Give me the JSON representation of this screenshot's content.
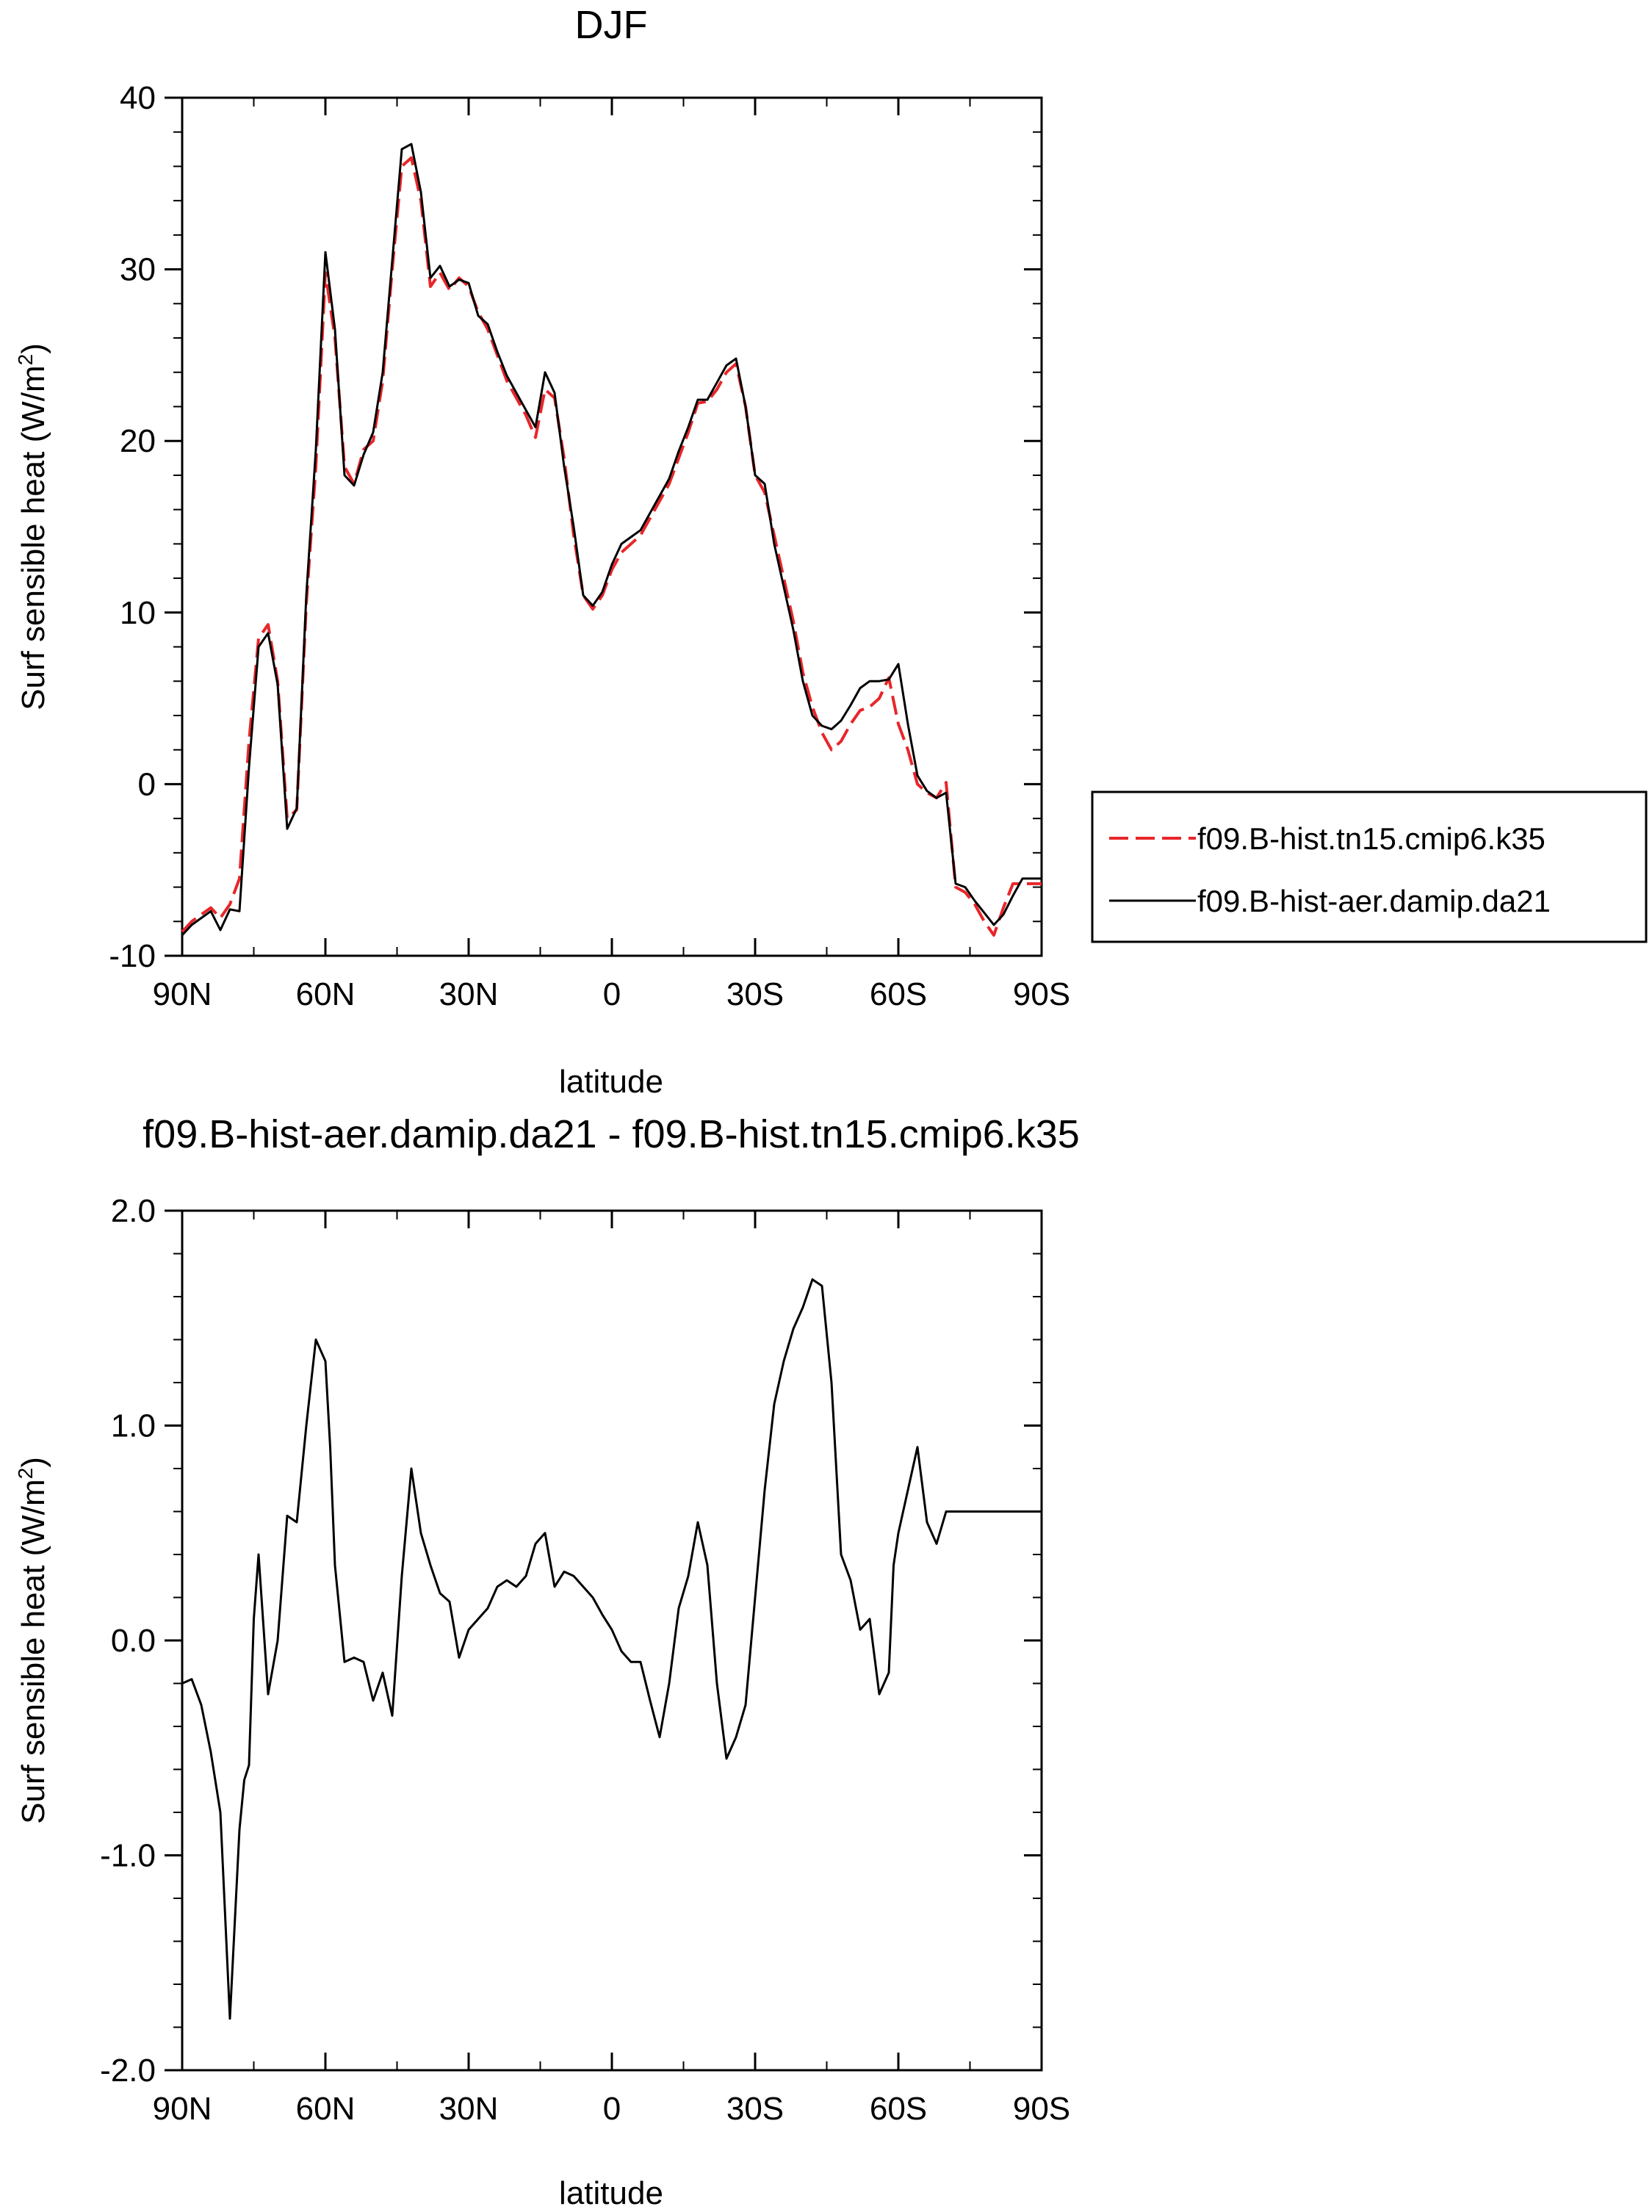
{
  "chart_data": [
    {
      "type": "line",
      "title": "DJF",
      "xlabel": "latitude",
      "ylabel": "Surf sensible heat (W/m²)",
      "ylabel_main": "Surf sensible heat (W/m",
      "ylabel_sup": "2",
      "ylabel_close": ")",
      "xlim": [
        90,
        -90
      ],
      "ylim": [
        -10,
        40
      ],
      "xticks": [
        90,
        60,
        30,
        0,
        -30,
        -60,
        -90
      ],
      "xticklabels": [
        "90N",
        "60N",
        "30N",
        "0",
        "30S",
        "60S",
        "90S"
      ],
      "yticks": [
        -10,
        0,
        10,
        20,
        30,
        40
      ],
      "yticklabels": [
        "-10",
        "0",
        "10",
        "20",
        "30",
        "40"
      ],
      "grid": false,
      "legend_position": "right",
      "series": [
        {
          "name": "f09.B-hist.tn15.cmip6.k35",
          "color": "#e8262a",
          "style": "dashed",
          "x": [
            90,
            88,
            86,
            84,
            82,
            80,
            78,
            76,
            74,
            72,
            70,
            68,
            66,
            64,
            62,
            60,
            58,
            56,
            54,
            52,
            50,
            48,
            46,
            44,
            42,
            40,
            38,
            36,
            34,
            32,
            30,
            28,
            26,
            24,
            22,
            20,
            18,
            16,
            14,
            12,
            10,
            8,
            6,
            4,
            2,
            0,
            -2,
            -4,
            -6,
            -8,
            -10,
            -12,
            -14,
            -16,
            -18,
            -20,
            -22,
            -24,
            -26,
            -28,
            -30,
            -32,
            -34,
            -36,
            -38,
            -40,
            -42,
            -44,
            -46,
            -48,
            -50,
            -52,
            -54,
            -56,
            -58,
            -60,
            -62,
            -64,
            -66,
            -68,
            -70,
            -72,
            -74,
            -76,
            -78,
            -80,
            -82,
            -84,
            -86,
            -88,
            -90
          ],
          "values": [
            -8.6,
            -8.0,
            -7.6,
            -7.2,
            -7.8,
            -7.0,
            -5.5,
            2.5,
            8.5,
            9.3,
            6.0,
            -2.0,
            -1.5,
            10.5,
            18.5,
            29.8,
            26.0,
            18.5,
            17.5,
            19.5,
            20.0,
            23.5,
            30.0,
            36.0,
            36.5,
            34.0,
            29.0,
            29.8,
            28.8,
            29.5,
            29.0,
            27.5,
            26.5,
            25.0,
            23.5,
            22.5,
            21.5,
            20.2,
            23.0,
            22.5,
            19.0,
            14.5,
            11.0,
            10.2,
            11.0,
            12.5,
            13.5,
            14.0,
            14.5,
            15.5,
            16.5,
            17.5,
            19.0,
            20.5,
            22.2,
            22.3,
            23.0,
            24.0,
            24.5,
            22.0,
            18.0,
            17.0,
            14.5,
            12.0,
            9.5,
            6.5,
            4.5,
            3.0,
            2.0,
            2.5,
            3.5,
            4.3,
            4.5,
            5.0,
            6.2,
            3.5,
            2.0,
            0.0,
            -0.5,
            -0.8,
            0.1,
            -6.0,
            -6.3,
            -7.0,
            -8.0,
            -8.8,
            -7.2,
            -5.8,
            -5.8,
            -5.8,
            -5.8
          ]
        },
        {
          "name": "f09.B-hist-aer.damip.da21",
          "color": "#000000",
          "style": "solid",
          "x": [
            90,
            88,
            86,
            84,
            82,
            80,
            78,
            76,
            74,
            72,
            70,
            68,
            66,
            64,
            62,
            60,
            58,
            56,
            54,
            52,
            50,
            48,
            46,
            44,
            42,
            40,
            38,
            36,
            34,
            32,
            30,
            28,
            26,
            24,
            22,
            20,
            18,
            16,
            14,
            12,
            10,
            8,
            6,
            4,
            2,
            0,
            -2,
            -4,
            -6,
            -8,
            -10,
            -12,
            -14,
            -16,
            -18,
            -20,
            -22,
            -24,
            -26,
            -28,
            -30,
            -32,
            -34,
            -36,
            -38,
            -40,
            -42,
            -44,
            -46,
            -48,
            -50,
            -52,
            -54,
            -56,
            -58,
            -60,
            -62,
            -64,
            -66,
            -68,
            -70,
            -72,
            -74,
            -76,
            -78,
            -80,
            -82,
            -84,
            -86,
            -88,
            -90
          ],
          "values": [
            -8.8,
            -8.2,
            -7.8,
            -7.4,
            -8.5,
            -7.3,
            -7.4,
            1.0,
            8.0,
            8.8,
            5.8,
            -2.6,
            -1.4,
            11.0,
            19.5,
            31.0,
            26.5,
            18.0,
            17.4,
            19.2,
            20.5,
            24.0,
            30.5,
            37.0,
            37.3,
            34.5,
            29.5,
            30.2,
            29.0,
            29.4,
            29.2,
            27.3,
            26.8,
            25.2,
            23.8,
            22.8,
            21.8,
            20.8,
            24.0,
            22.8,
            18.5,
            15.0,
            11.0,
            10.4,
            11.2,
            12.8,
            14.0,
            14.4,
            14.8,
            15.8,
            16.8,
            17.8,
            19.4,
            20.8,
            22.4,
            22.4,
            23.4,
            24.4,
            24.8,
            22.0,
            18.0,
            17.5,
            14.0,
            11.5,
            9.0,
            6.0,
            4.0,
            3.4,
            3.2,
            3.7,
            4.6,
            5.6,
            6.0,
            6.0,
            6.1,
            7.0,
            3.5,
            0.5,
            -0.4,
            -0.8,
            -0.5,
            -5.8,
            -6.0,
            -6.8,
            -7.5,
            -8.2,
            -7.6,
            -6.5,
            -5.5,
            -5.5,
            -5.5
          ]
        }
      ]
    },
    {
      "type": "line",
      "title": "f09.B-hist-aer.damip.da21 - f09.B-hist.tn15.cmip6.k35",
      "xlabel": "latitude",
      "ylabel": "Surf sensible heat (W/m²)",
      "ylabel_main": "Surf sensible heat (W/m",
      "ylabel_sup": "2",
      "ylabel_close": ")",
      "xlim": [
        90,
        -90
      ],
      "ylim": [
        -2.0,
        2.0
      ],
      "xticks": [
        90,
        60,
        30,
        0,
        -30,
        -60,
        -90
      ],
      "xticklabels": [
        "90N",
        "60N",
        "30N",
        "0",
        "30S",
        "60S",
        "90S"
      ],
      "yticks": [
        -2.0,
        -1.0,
        0.0,
        1.0,
        2.0
      ],
      "yticklabels": [
        "-2.0",
        "-1.0",
        "0.0",
        "1.0",
        "2.0"
      ],
      "grid": false,
      "series": [
        {
          "color": "#000000",
          "style": "solid",
          "x": [
            90,
            88,
            86,
            84,
            82,
            80,
            78,
            77,
            76,
            75,
            74,
            72,
            70,
            68,
            66,
            64,
            62,
            60,
            59,
            58,
            56,
            54,
            52,
            50,
            48,
            46,
            44,
            42,
            40,
            38,
            36,
            34,
            32,
            30,
            28,
            26,
            24,
            22,
            20,
            18,
            16,
            14,
            12,
            10,
            8,
            6,
            4,
            2,
            0,
            -2,
            -4,
            -6,
            -8,
            -10,
            -12,
            -14,
            -16,
            -18,
            -20,
            -22,
            -24,
            -26,
            -28,
            -30,
            -32,
            -34,
            -36,
            -38,
            -40,
            -42,
            -44,
            -46,
            -48,
            -50,
            -52,
            -54,
            -56,
            -58,
            -59,
            -60,
            -62,
            -64,
            -66,
            -68,
            -70,
            -72,
            -74,
            -76,
            -78,
            -80,
            -82,
            -84,
            -86,
            -88,
            -90
          ],
          "values": [
            -0.2,
            -0.18,
            -0.3,
            -0.52,
            -0.8,
            -1.76,
            -0.88,
            -0.65,
            -0.58,
            0.1,
            0.4,
            -0.25,
            0.0,
            0.58,
            0.55,
            1.0,
            1.4,
            1.3,
            0.9,
            0.35,
            -0.1,
            -0.08,
            -0.1,
            -0.28,
            -0.15,
            -0.35,
            0.3,
            0.8,
            0.5,
            0.35,
            0.22,
            0.18,
            -0.08,
            0.05,
            0.1,
            0.15,
            0.25,
            0.28,
            0.25,
            0.3,
            0.45,
            0.5,
            0.25,
            0.32,
            0.3,
            0.25,
            0.2,
            0.12,
            0.05,
            -0.05,
            -0.1,
            -0.1,
            -0.28,
            -0.45,
            -0.2,
            0.15,
            0.3,
            0.55,
            0.35,
            -0.2,
            -0.55,
            -0.45,
            -0.3,
            0.2,
            0.7,
            1.1,
            1.3,
            1.45,
            1.55,
            1.68,
            1.65,
            1.2,
            0.4,
            0.28,
            0.05,
            0.1,
            -0.25,
            -0.15,
            0.35,
            0.5,
            0.7,
            0.9,
            0.55,
            0.45,
            0.6,
            0.6,
            0.6,
            0.6,
            0.6,
            0.6,
            0.6,
            0.6,
            0.6,
            0.6,
            0.6
          ]
        }
      ]
    }
  ]
}
